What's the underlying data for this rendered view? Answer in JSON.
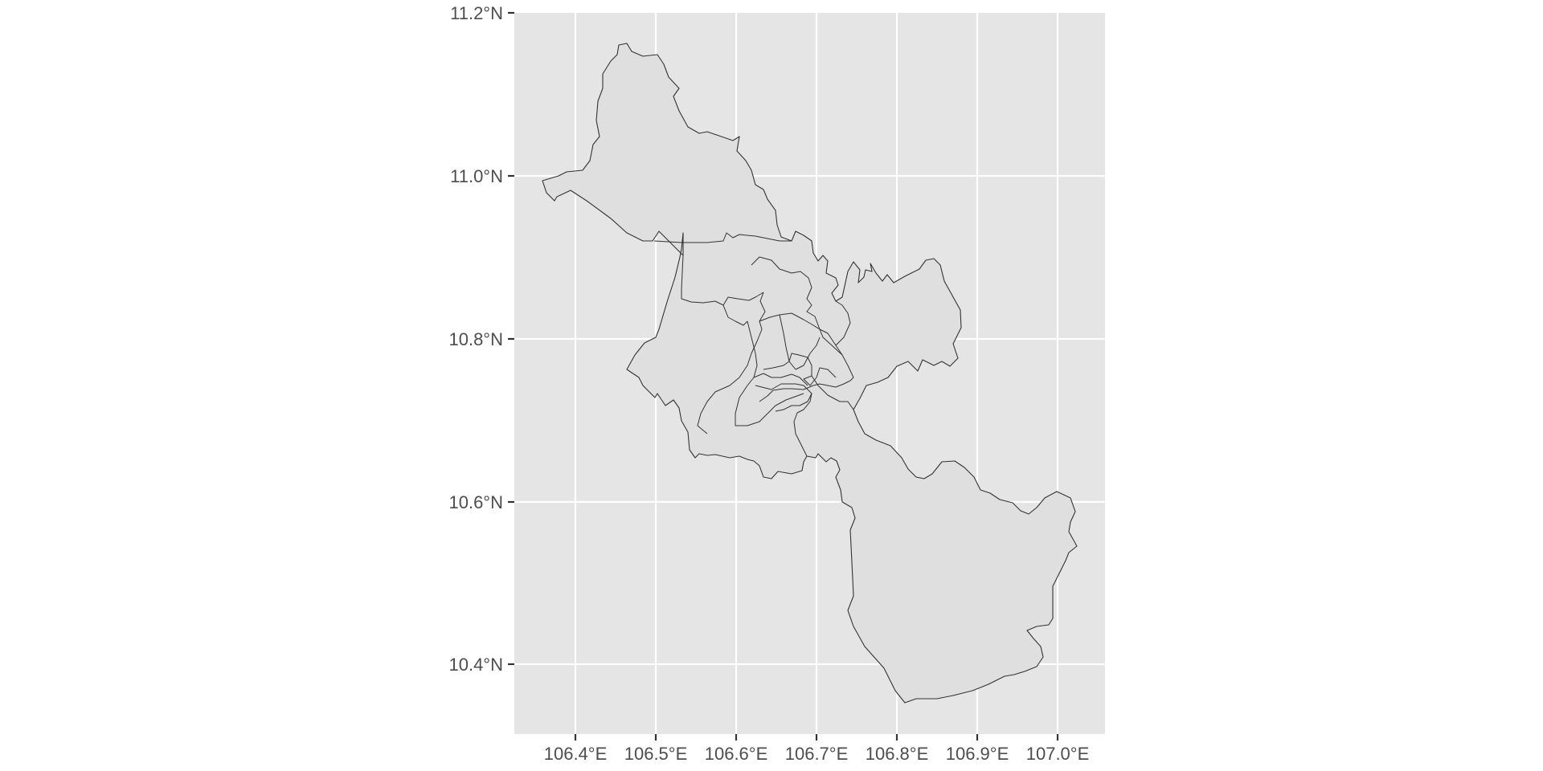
{
  "map": {
    "x_axis": {
      "ticks": [
        "106.4°E",
        "106.5°E",
        "106.6°E",
        "106.7°E",
        "106.8°E",
        "106.9°E",
        "107.0°E"
      ]
    },
    "y_axis": {
      "ticks": [
        "11.2°N",
        "11.0°N",
        "10.8°N",
        "10.6°N",
        "10.4°N"
      ]
    },
    "colors": {
      "panel_background": "#e5e5e5",
      "gridline": "#ffffff",
      "region_fill": "#dfdfdf",
      "region_border": "#333333"
    }
  }
}
